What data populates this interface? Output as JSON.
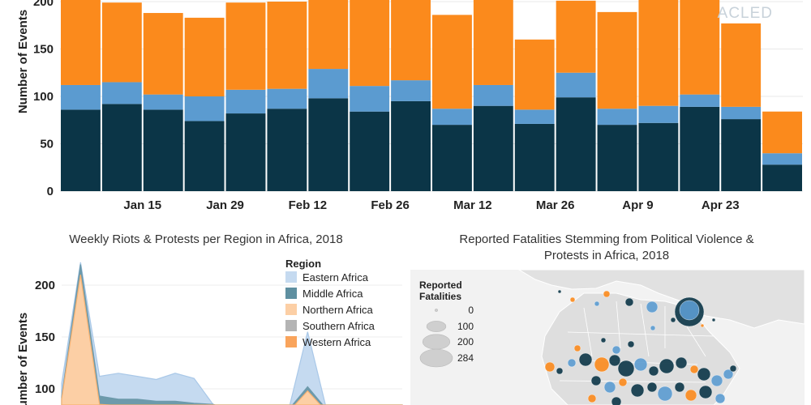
{
  "watermark": "ACLED",
  "colors": {
    "dark": "#0b3547",
    "blue": "#5b9bd0",
    "orange": "#fb8a1c",
    "grid": "#e3e3e3",
    "land": "#e6e6e6",
    "sea": "#ffffff"
  },
  "chart_data": [
    {
      "type": "bar",
      "title": "",
      "ylabel": "Number of Events",
      "xlabel": "",
      "ylim": [
        0,
        200
      ],
      "y_ticks": [
        0,
        50,
        100,
        150,
        200
      ],
      "x_tick_labels": [
        "Jan 15",
        "Jan 29",
        "Feb 12",
        "Feb 26",
        "Mar 12",
        "Mar 26",
        "Apr 9",
        "Apr 23"
      ],
      "x_tick_bar_index": [
        2,
        4,
        6,
        8,
        10,
        12,
        14,
        16
      ],
      "stacked": true,
      "series": [
        {
          "name": "dark",
          "color": "#0b3547",
          "values": [
            86,
            92,
            86,
            74,
            82,
            87,
            98,
            84,
            95,
            70,
            90,
            71,
            99,
            70,
            72,
            89,
            76,
            28
          ]
        },
        {
          "name": "blue",
          "color": "#5b9bd0",
          "values": [
            26,
            23,
            16,
            26,
            25,
            21,
            31,
            27,
            22,
            17,
            22,
            15,
            26,
            17,
            18,
            13,
            13,
            12
          ]
        },
        {
          "name": "orange",
          "color": "#fb8a1c",
          "values": [
            108,
            84,
            86,
            83,
            92,
            92,
            90,
            91,
            100,
            99,
            106,
            74,
            76,
            102,
            116,
            114,
            88,
            44
          ]
        }
      ]
    },
    {
      "type": "area",
      "title": "Weekly Riots & Protests per Region in Africa, 2018",
      "ylabel": "Number of Events",
      "ylim": [
        30,
        230
      ],
      "y_ticks": [
        100,
        150,
        200
      ],
      "legend_title": "Region",
      "legend": [
        "Eastern Africa",
        "Middle Africa",
        "Northern Africa",
        "Southern Africa",
        "Western Africa"
      ],
      "legend_colors": [
        "#c5daf0",
        "#5e8fa0",
        "#fccfa5",
        "#b4b4b4",
        "#f9a45c"
      ],
      "series": [
        {
          "name": "Eastern Africa",
          "values": [
            105,
            222,
            112,
            115,
            112,
            109,
            115,
            110,
            85,
            80,
            80,
            82,
            80,
            155,
            80,
            80,
            80,
            80,
            80
          ]
        },
        {
          "name": "Middle Africa",
          "values": [
            92,
            220,
            93,
            90,
            90,
            88,
            88,
            86,
            85,
            80,
            80,
            82,
            80,
            102,
            80,
            80,
            80,
            80,
            80
          ]
        },
        {
          "name": "Northern Africa",
          "values": [
            90,
            210,
            85,
            84,
            84,
            82,
            82,
            80,
            80,
            78,
            78,
            78,
            78,
            98,
            78,
            78,
            78,
            78,
            78
          ]
        }
      ]
    },
    {
      "type": "scatter",
      "title_lines": [
        "Reported Fatalities Stemming from Political Violence &",
        "Protests in Africa, 2018"
      ],
      "legend_title": "Reported Fatalities",
      "size_legend": [
        0,
        100,
        200,
        284
      ]
    }
  ]
}
